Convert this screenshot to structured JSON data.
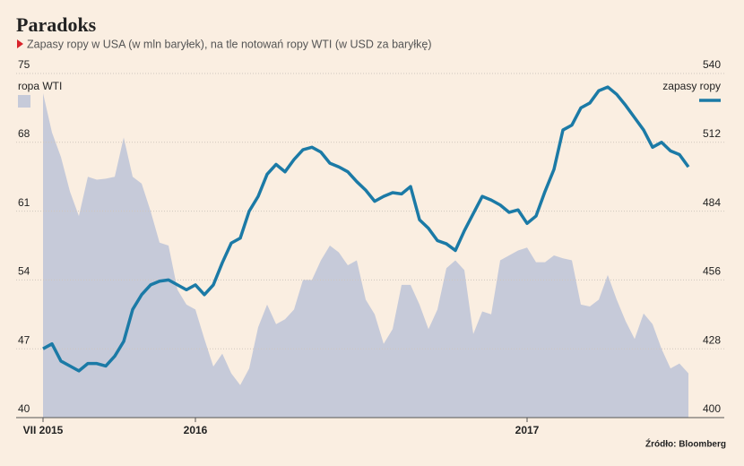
{
  "chart_data": {
    "type": "area-line",
    "title": "Paradoks",
    "subtitle": "Zapasy ropy w USA (w mln baryłek), na tle notowań ropy WTI (w USD za baryłkę)",
    "source": "Źródło: Bloomberg",
    "categories": [
      "VII 2015",
      null,
      null,
      null,
      null,
      null,
      null,
      null,
      null,
      null,
      null,
      null,
      null,
      null,
      null,
      null,
      null,
      "2016",
      null,
      null,
      null,
      null,
      null,
      null,
      null,
      null,
      null,
      null,
      null,
      null,
      null,
      null,
      null,
      null,
      null,
      null,
      null,
      null,
      null,
      null,
      null,
      null,
      null,
      null,
      null,
      null,
      null,
      null,
      null,
      null,
      null,
      null,
      null,
      null,
      "2017",
      null,
      null,
      null,
      null,
      null,
      null,
      null,
      null,
      null,
      null,
      null,
      null,
      null,
      null,
      null,
      null,
      null,
      null
    ],
    "series": [
      {
        "name": "ropa WTI",
        "color": "#c6cad9",
        "axis": "y",
        "values": [
          73,
          69,
          66.5,
          63,
          60.5,
          64.5,
          64.2,
          64.3,
          64.5,
          68.5,
          64.5,
          63.8,
          61,
          57.8,
          57.5,
          53,
          51.5,
          51,
          48,
          45.2,
          46.5,
          44.5,
          43.3,
          45,
          49.2,
          51.5,
          49.5,
          50,
          51,
          54,
          54,
          56,
          57.5,
          56.8,
          55.5,
          56,
          52,
          50.5,
          47.5,
          49,
          53.5,
          53.5,
          51.5,
          49,
          51,
          55.2,
          56,
          55,
          48.5,
          50.8,
          50.5,
          56,
          56.5,
          57,
          57.3,
          55.8,
          55.8,
          56.5,
          56.2,
          56,
          51.5,
          51.3,
          52,
          54.5,
          52,
          49.8,
          48,
          50.6,
          49.5,
          47,
          45,
          45.5,
          44.5
        ]
      },
      {
        "name": "zapasy ropy",
        "color": "#1b7aa6",
        "axis": "y2",
        "values": [
          428,
          430,
          423,
          421,
          419,
          422,
          422,
          421,
          425,
          431,
          444,
          450,
          454,
          455.5,
          456,
          454,
          452,
          454,
          450,
          454,
          463,
          471,
          473,
          484,
          490,
          499,
          503,
          500,
          505,
          509,
          510,
          508,
          503.5,
          502,
          500,
          496,
          492.5,
          488,
          490,
          491.5,
          491,
          494,
          480.5,
          477,
          472,
          470.7,
          468,
          476,
          483,
          490,
          488.5,
          486.5,
          483.5,
          484.5,
          479,
          482,
          492,
          501,
          517,
          519,
          526,
          528,
          533,
          534.5,
          531.5,
          527,
          522,
          517,
          510,
          512,
          508.5,
          507,
          502
        ]
      }
    ],
    "ylim": [
      40,
      75
    ],
    "yticks": [
      40,
      47,
      54,
      61,
      68,
      75
    ],
    "y2lim": [
      400,
      540
    ],
    "y2ticks": [
      400,
      428,
      456,
      484,
      512,
      540
    ],
    "grid": true
  }
}
